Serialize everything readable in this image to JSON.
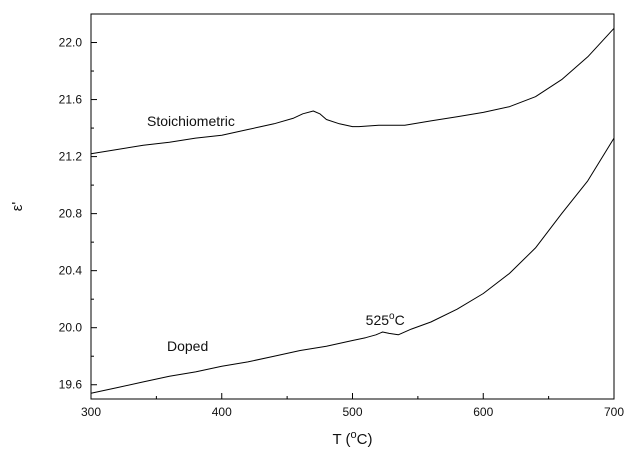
{
  "chart_data": {
    "type": "line",
    "title": "",
    "xlabel": "T (",
    "xlabel_sup": "o",
    "xlabel_end": "C)",
    "ylabel": "ε'",
    "xlim": [
      300,
      700
    ],
    "ylim": [
      19.5,
      22.2
    ],
    "x_ticks": [
      300,
      400,
      500,
      600,
      700
    ],
    "x_tick_labels": [
      "300",
      "400",
      "500",
      "600",
      "700"
    ],
    "y_ticks": [
      19.6,
      20.0,
      20.4,
      20.8,
      21.2,
      21.6,
      22.0
    ],
    "y_tick_labels": [
      "19.6",
      "20.0",
      "20.4",
      "20.8",
      "21.2",
      "21.6",
      "22.0"
    ],
    "grid": false,
    "legend": "none",
    "series": [
      {
        "label_text": "Stoichiometric",
        "x": [
          300,
          320,
          340,
          360,
          380,
          400,
          420,
          440,
          455,
          462,
          470,
          475,
          480,
          490,
          500,
          505,
          520,
          540,
          560,
          580,
          600,
          620,
          640,
          660,
          680,
          700
        ],
        "y": [
          21.22,
          21.25,
          21.28,
          21.3,
          21.33,
          21.35,
          21.39,
          21.43,
          21.47,
          21.5,
          21.52,
          21.5,
          21.46,
          21.43,
          21.41,
          21.41,
          21.42,
          21.42,
          21.45,
          21.48,
          21.51,
          21.55,
          21.62,
          21.74,
          21.9,
          22.1
        ]
      },
      {
        "label_text": "Doped",
        "x": [
          300,
          320,
          340,
          360,
          380,
          400,
          420,
          440,
          460,
          480,
          500,
          510,
          518,
          523,
          528,
          535,
          545,
          560,
          580,
          600,
          620,
          640,
          660,
          680,
          700
        ],
        "y": [
          19.54,
          19.58,
          19.62,
          19.66,
          19.69,
          19.73,
          19.76,
          19.8,
          19.84,
          19.87,
          19.91,
          19.93,
          19.95,
          19.97,
          19.96,
          19.95,
          19.99,
          20.04,
          20.13,
          20.24,
          20.38,
          20.56,
          20.8,
          21.03,
          21.33
        ]
      }
    ],
    "annotations": [
      {
        "text": "525",
        "sup": "o",
        "end": "C",
        "x": 525,
        "y": 20.06
      }
    ]
  }
}
